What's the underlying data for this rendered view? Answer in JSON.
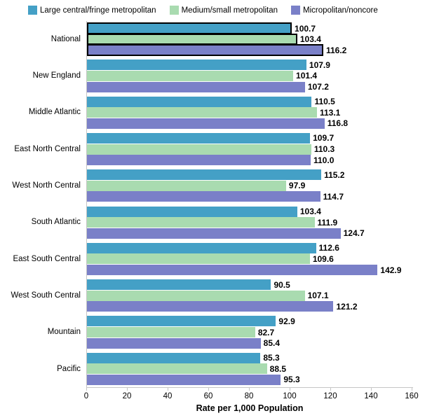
{
  "chart_data": {
    "type": "bar",
    "orientation": "horizontal",
    "xlabel": "Rate per 1,000 Population",
    "xlim": [
      0,
      160
    ],
    "xticks": [
      0,
      20,
      40,
      60,
      80,
      100,
      120,
      140,
      160
    ],
    "grid": false,
    "legend_position": "top",
    "value_labels": "end-of-bar, bold, one decimal",
    "categories": [
      "National",
      "New England",
      "Middle Atlantic",
      "East North Central",
      "West North Central",
      "South Atlantic",
      "East South Central",
      "West South Central",
      "Mountain",
      "Pacific"
    ],
    "series": [
      {
        "name": "Large central/fringe metropolitan",
        "color": "#44a0c6",
        "values": [
          100.7,
          107.9,
          110.5,
          109.7,
          115.2,
          103.4,
          112.6,
          90.5,
          92.9,
          85.3
        ]
      },
      {
        "name": "Medium/small metropolitan",
        "color": "#a9dbb0",
        "values": [
          103.4,
          101.4,
          113.1,
          110.3,
          97.9,
          111.9,
          109.6,
          107.1,
          82.7,
          88.5
        ]
      },
      {
        "name": "Micropolitan/noncore",
        "color": "#7a80c8",
        "values": [
          116.2,
          107.2,
          116.8,
          110.0,
          114.7,
          124.7,
          142.9,
          121.2,
          85.4,
          95.3
        ]
      }
    ],
    "highlighted_category": "National",
    "highlight_style": "black outline on National bars",
    "axis_color": "#c6c6c6",
    "text_color": "#000000"
  }
}
